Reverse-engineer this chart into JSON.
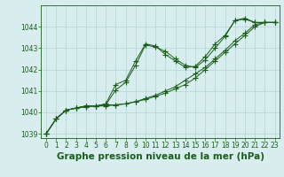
{
  "title": "Graphe pression niveau de la mer (hPa)",
  "background_color": "#d8eeee",
  "grid_color": "#b8d8d8",
  "line_color": "#1a5c1a",
  "xlim": [
    -0.5,
    23.5
  ],
  "ylim": [
    1038.8,
    1045.0
  ],
  "yticks": [
    1039,
    1040,
    1041,
    1042,
    1043,
    1044
  ],
  "xticks": [
    0,
    1,
    2,
    3,
    4,
    5,
    6,
    7,
    8,
    9,
    10,
    11,
    12,
    13,
    14,
    15,
    16,
    17,
    18,
    19,
    20,
    21,
    22,
    23
  ],
  "series": [
    [
      1039.0,
      1039.7,
      1040.1,
      1040.2,
      1040.3,
      1040.3,
      1040.3,
      1040.35,
      1040.4,
      1040.5,
      1040.6,
      1040.75,
      1040.9,
      1041.1,
      1041.3,
      1041.6,
      1042.0,
      1042.4,
      1042.8,
      1043.2,
      1043.6,
      1044.0,
      1044.2,
      1044.2
    ],
    [
      1039.0,
      1039.7,
      1040.1,
      1040.2,
      1040.3,
      1040.3,
      1040.35,
      1040.35,
      1040.4,
      1040.5,
      1040.65,
      1040.8,
      1041.0,
      1041.2,
      1041.5,
      1041.8,
      1042.1,
      1042.5,
      1042.9,
      1043.35,
      1043.7,
      1044.1,
      1044.2,
      1044.2
    ],
    [
      1039.0,
      1039.7,
      1040.1,
      1040.2,
      1040.25,
      1040.3,
      1040.35,
      1041.05,
      1041.4,
      1042.2,
      1043.15,
      1043.05,
      1042.85,
      1042.5,
      1042.2,
      1042.1,
      1042.45,
      1043.0,
      1043.55,
      1044.3,
      1044.35,
      1044.2,
      1044.2,
      1044.2
    ],
    [
      1039.0,
      1039.7,
      1040.1,
      1040.2,
      1040.3,
      1040.3,
      1040.4,
      1041.3,
      1041.5,
      1042.4,
      1043.2,
      1043.1,
      1042.7,
      1042.4,
      1042.1,
      1042.15,
      1042.6,
      1043.2,
      1043.6,
      1044.3,
      1044.4,
      1044.2,
      1044.2,
      1044.2
    ]
  ],
  "title_fontsize": 7.5,
  "tick_fontsize": 5.5,
  "marker_size": 2.5,
  "linewidth": 0.7
}
